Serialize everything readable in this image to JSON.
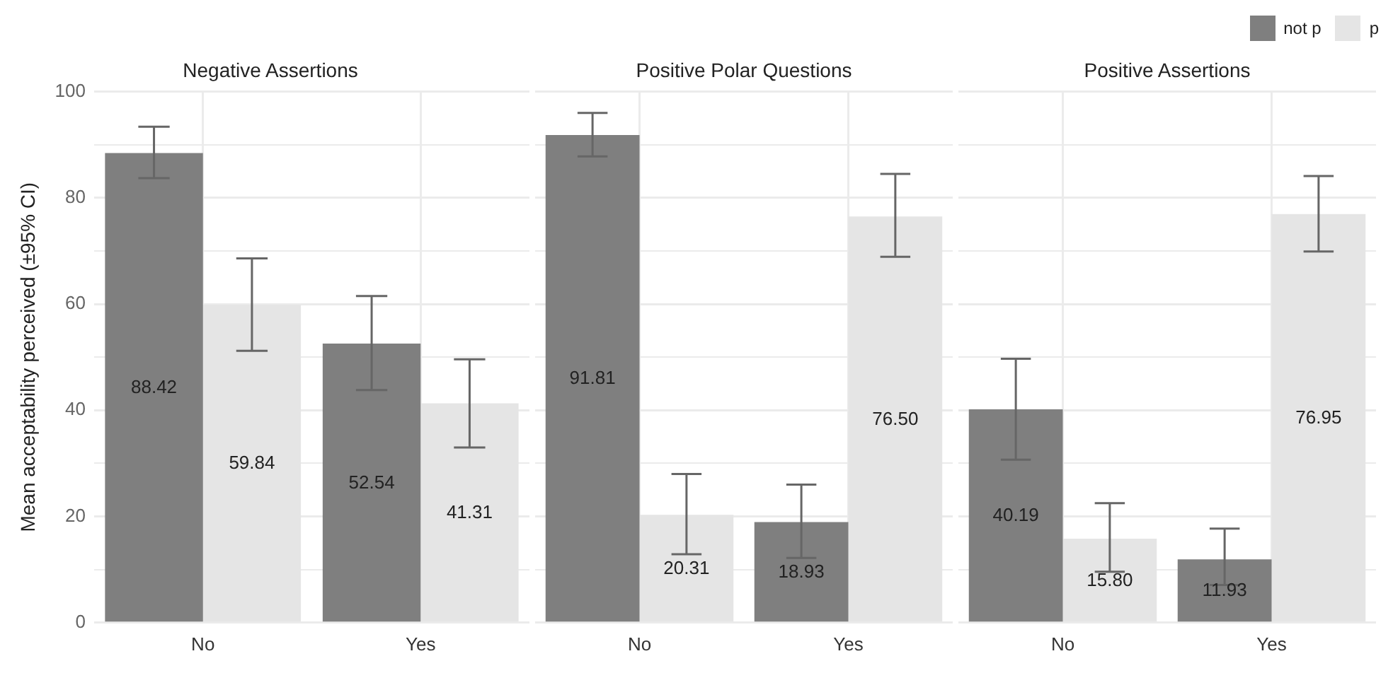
{
  "chart_data": [
    {
      "type": "bar",
      "title": "Negative Assertions",
      "ylabel": "Mean acceptability perceived (±95% CI)",
      "categories": [
        "No",
        "Yes"
      ],
      "ylim": [
        0,
        100
      ],
      "yticks": [
        0,
        {
          "value": 10,
          "label": null
        },
        20,
        {
          "value": 30,
          "label": null
        },
        40,
        {
          "value": 50,
          "label": null
        },
        60,
        {
          "value": 70,
          "label": null
        },
        80,
        {
          "value": 90,
          "label": null
        },
        100
      ],
      "grid": true,
      "series": [
        {
          "color": "#7f7f7f",
          "values": [
            88.42,
            52.54
          ],
          "value_labels": [
            "88.42",
            "52.54"
          ],
          "errors": [
            [
              83.7,
              93.4
            ],
            [
              43.8,
              61.5
            ]
          ]
        },
        {
          "color": "#e5e5e5",
          "values": [
            59.84,
            41.31
          ],
          "value_labels": [
            "59.84",
            "41.31"
          ],
          "errors": [
            [
              51.2,
              68.6
            ],
            [
              33.0,
              49.6
            ]
          ]
        }
      ]
    },
    {
      "type": "bar",
      "title": "Positive Polar Questions",
      "categories": [
        "No",
        "Yes"
      ],
      "ylim": [
        0,
        100
      ],
      "yticks": [
        0,
        {
          "value": 10,
          "label": null
        },
        20,
        {
          "value": 30,
          "label": null
        },
        40,
        {
          "value": 50,
          "label": null
        },
        60,
        {
          "value": 70,
          "label": null
        },
        80,
        {
          "value": 90,
          "label": null
        },
        100
      ],
      "grid": true,
      "tick_labels": "x",
      "series": [
        {
          "color": "#7f7f7f",
          "values": [
            91.81,
            18.93
          ],
          "value_labels": [
            "91.81",
            "18.93"
          ],
          "errors": [
            [
              87.8,
              96.0
            ],
            [
              12.2,
              26.0
            ]
          ]
        },
        {
          "color": "#e5e5e5",
          "values": [
            20.31,
            76.5
          ],
          "value_labels": [
            "20.31",
            "76.50"
          ],
          "errors": [
            [
              12.9,
              28.0
            ],
            [
              68.9,
              84.5
            ]
          ]
        }
      ]
    },
    {
      "type": "bar",
      "title": "Positive Assertions",
      "categories": [
        "No",
        "Yes"
      ],
      "ylim": [
        0,
        100
      ],
      "yticks": [
        0,
        {
          "value": 10,
          "label": null
        },
        20,
        {
          "value": 30,
          "label": null
        },
        40,
        {
          "value": 50,
          "label": null
        },
        60,
        {
          "value": 70,
          "label": null
        },
        80,
        {
          "value": 90,
          "label": null
        },
        100
      ],
      "grid": true,
      "tick_labels": "x",
      "legend": "top right",
      "series": [
        {
          "name": "not p",
          "color": "#7f7f7f",
          "values": [
            40.19,
            11.93
          ],
          "value_labels": [
            "40.19",
            "11.93"
          ],
          "errors": [
            [
              30.7,
              49.7
            ],
            [
              7.1,
              17.7
            ]
          ]
        },
        {
          "name": "p",
          "color": "#e5e5e5",
          "values": [
            15.8,
            76.95
          ],
          "value_labels": [
            "15.80",
            "76.95"
          ],
          "errors": [
            [
              9.6,
              22.5
            ],
            [
              69.9,
              84.1
            ]
          ]
        }
      ]
    }
  ]
}
